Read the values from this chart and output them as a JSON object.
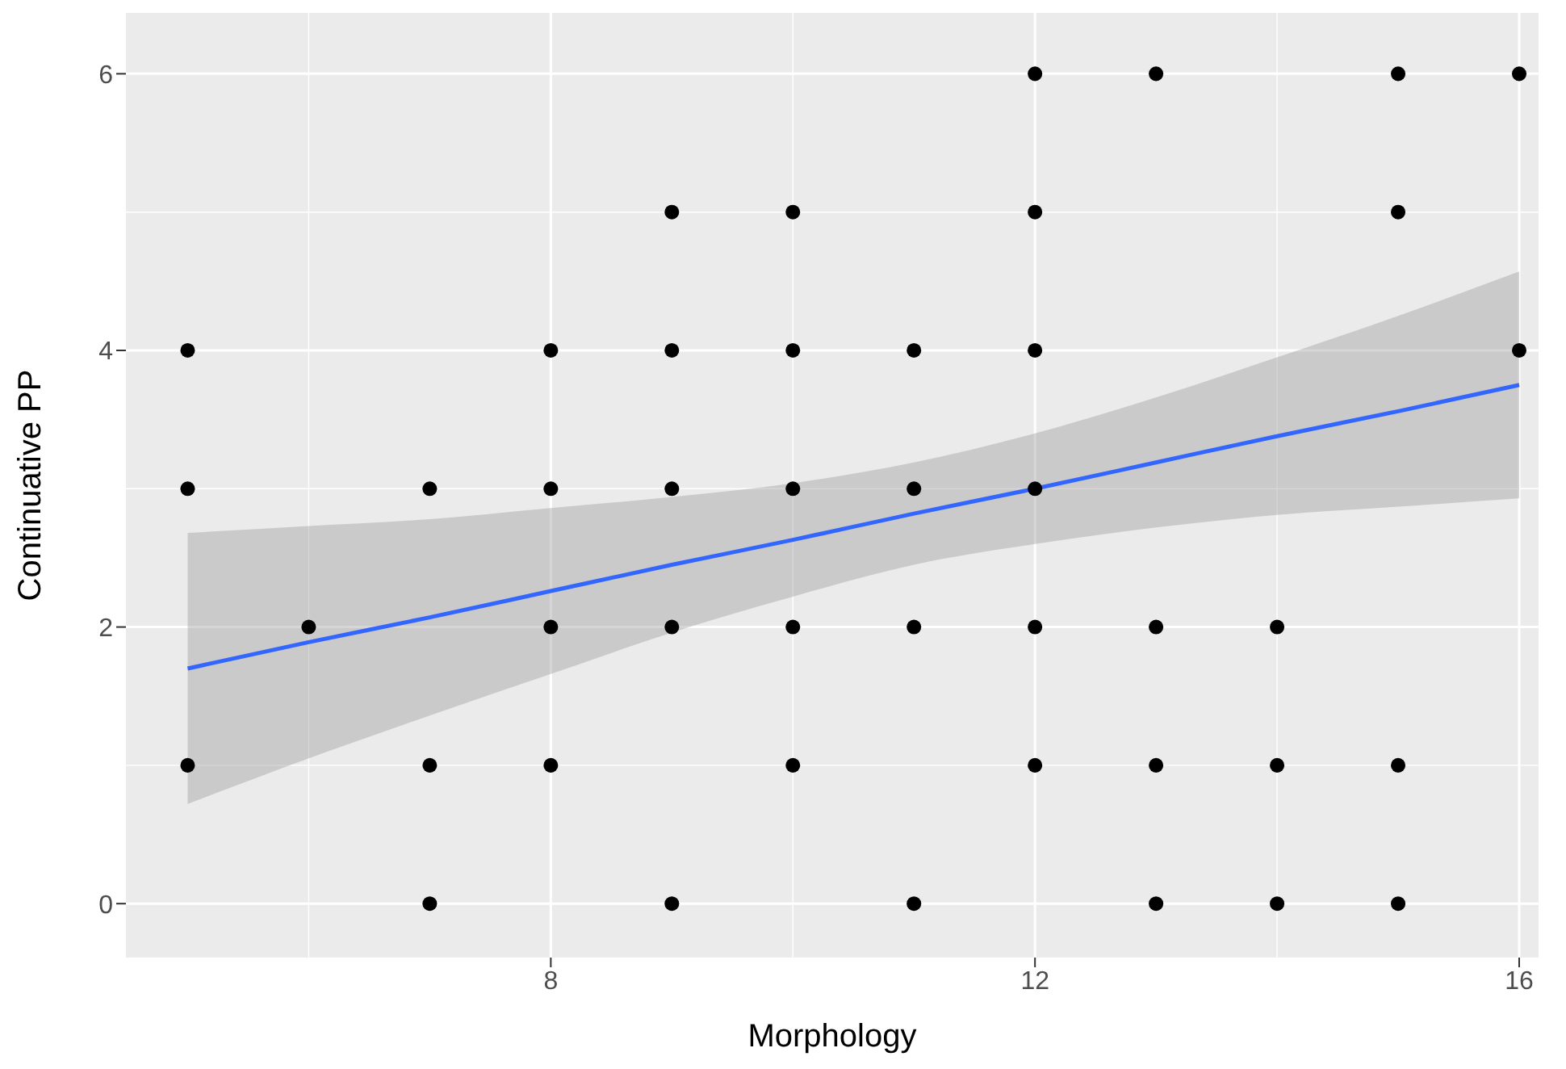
{
  "chart_data": {
    "type": "scatter",
    "xlabel": "Morphology",
    "ylabel": "Continuative PP",
    "xlim": [
      4.49,
      16.16
    ],
    "ylim": [
      -0.39,
      6.44
    ],
    "xticks": [
      8,
      12,
      16
    ],
    "yticks": [
      0,
      2,
      4,
      6
    ],
    "grid": true,
    "legend": false,
    "marker": "circle",
    "series": [
      {
        "color": "#000000",
        "x": [
          5,
          5,
          5,
          6,
          7,
          7,
          7,
          8,
          8,
          8,
          8,
          9,
          9,
          9,
          9,
          9,
          10,
          10,
          10,
          10,
          10,
          11,
          11,
          11,
          11,
          12,
          12,
          12,
          12,
          12,
          12,
          13,
          13,
          13,
          13,
          14,
          14,
          14,
          15,
          15,
          15,
          15,
          16,
          16
        ],
        "values": [
          4,
          3,
          1,
          2,
          3,
          1,
          0,
          4,
          3,
          2,
          1,
          5,
          4,
          3,
          2,
          0,
          5,
          4,
          3,
          2,
          1,
          4,
          3,
          2,
          0,
          6,
          5,
          4,
          3,
          2,
          1,
          6,
          2,
          1,
          0,
          2,
          1,
          0,
          6,
          5,
          1,
          0,
          6,
          4
        ]
      },
      {
        "type": "line",
        "marker": "none",
        "color": "#3366ff",
        "x": [
          5,
          6,
          7,
          8,
          9,
          10,
          11,
          12,
          13,
          14,
          15,
          16
        ],
        "values": [
          1.7,
          1.89,
          2.07,
          2.26,
          2.45,
          2.63,
          2.82,
          3.0,
          3.19,
          3.38,
          3.56,
          3.75
        ],
        "lower": [
          0.72,
          1.05,
          1.36,
          1.66,
          1.96,
          2.22,
          2.45,
          2.6,
          2.72,
          2.81,
          2.87,
          2.93
        ],
        "upper": [
          2.68,
          2.73,
          2.78,
          2.86,
          2.94,
          3.04,
          3.19,
          3.4,
          3.66,
          3.95,
          4.25,
          4.57
        ]
      }
    ]
  }
}
